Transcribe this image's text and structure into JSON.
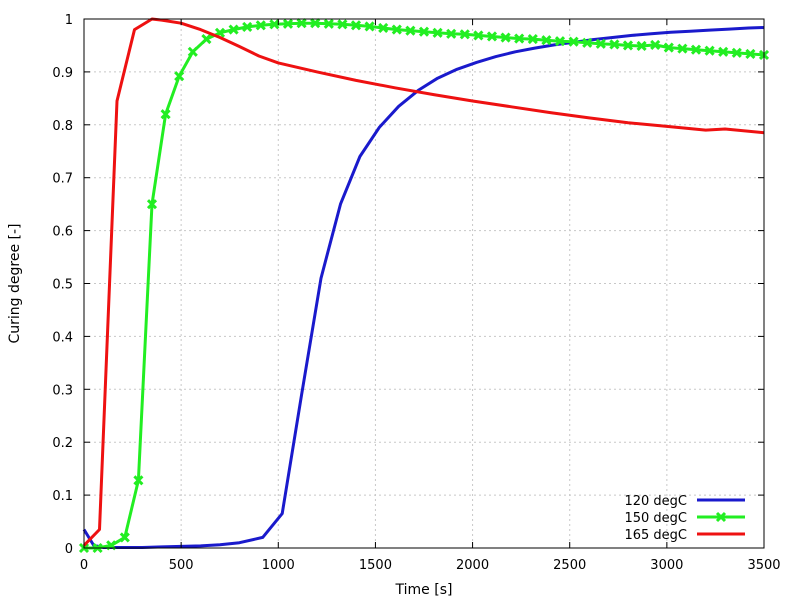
{
  "chart_data": {
    "type": "line",
    "xlabel": "Time [s]",
    "ylabel": "Curing degree [-]",
    "xlim": [
      0,
      3500
    ],
    "ylim": [
      0,
      1
    ],
    "xticks": [
      0,
      500,
      1000,
      1500,
      2000,
      2500,
      3000,
      3500
    ],
    "yticks": [
      0,
      0.1,
      0.2,
      0.3,
      0.4,
      0.5,
      0.6,
      0.7,
      0.8,
      0.9,
      1
    ],
    "ytick_labels": [
      "0",
      "0.1",
      "0.2",
      "0.3",
      "0.4",
      "0.5",
      "0.6",
      "0.7",
      "0.8",
      "0.9",
      "1"
    ],
    "grid": true,
    "legend_position": "bottom-right",
    "series": [
      {
        "name": "120 degC",
        "color": "#1a1acc",
        "marker": "none",
        "x": [
          0,
          50,
          100,
          200,
          300,
          400,
          500,
          600,
          700,
          800,
          920,
          1020,
          1120,
          1220,
          1320,
          1420,
          1520,
          1620,
          1720,
          1820,
          1920,
          2020,
          2120,
          2220,
          2320,
          2420,
          2520,
          2620,
          2720,
          2820,
          2920,
          3020,
          3120,
          3220,
          3320,
          3420,
          3500
        ],
        "y": [
          0.035,
          0.005,
          0.001,
          0.001,
          0.001,
          0.002,
          0.003,
          0.004,
          0.006,
          0.01,
          0.02,
          0.065,
          0.29,
          0.51,
          0.65,
          0.74,
          0.795,
          0.835,
          0.865,
          0.888,
          0.905,
          0.918,
          0.929,
          0.938,
          0.945,
          0.951,
          0.956,
          0.961,
          0.965,
          0.969,
          0.972,
          0.975,
          0.977,
          0.979,
          0.981,
          0.983,
          0.984
        ]
      },
      {
        "name": "150 degC",
        "color": "#22ee22",
        "marker": "x",
        "x": [
          0,
          70,
          140,
          210,
          280,
          350,
          420,
          490,
          560,
          630,
          700,
          770,
          840,
          910,
          980,
          1050,
          1120,
          1190,
          1260,
          1330,
          1400,
          1470,
          1540,
          1610,
          1680,
          1750,
          1820,
          1890,
          1960,
          2030,
          2100,
          2170,
          2240,
          2310,
          2380,
          2450,
          2520,
          2590,
          2660,
          2730,
          2800,
          2870,
          2940,
          3010,
          3080,
          3150,
          3220,
          3290,
          3360,
          3430,
          3500
        ],
        "y": [
          0,
          0,
          0.005,
          0.02,
          0.128,
          0.65,
          0.82,
          0.892,
          0.938,
          0.962,
          0.974,
          0.98,
          0.985,
          0.988,
          0.99,
          0.991,
          0.992,
          0.992,
          0.991,
          0.99,
          0.988,
          0.986,
          0.983,
          0.98,
          0.978,
          0.976,
          0.974,
          0.972,
          0.971,
          0.969,
          0.967,
          0.965,
          0.963,
          0.962,
          0.96,
          0.958,
          0.957,
          0.955,
          0.953,
          0.952,
          0.95,
          0.949,
          0.951,
          0.946,
          0.944,
          0.942,
          0.94,
          0.938,
          0.936,
          0.934,
          0.932
        ]
      },
      {
        "name": "165 degC",
        "color": "#ee1111",
        "marker": "none",
        "x": [
          0,
          80,
          170,
          260,
          350,
          400,
          500,
          600,
          700,
          800,
          900,
          1000,
          1200,
          1400,
          1600,
          1800,
          2000,
          2200,
          2400,
          2600,
          2800,
          3000,
          3200,
          3300,
          3500
        ],
        "y": [
          0.005,
          0.035,
          0.845,
          0.98,
          1.0,
          0.998,
          0.992,
          0.98,
          0.965,
          0.948,
          0.93,
          0.917,
          0.9,
          0.884,
          0.87,
          0.857,
          0.845,
          0.834,
          0.823,
          0.813,
          0.804,
          0.797,
          0.79,
          0.792,
          0.785
        ]
      }
    ]
  }
}
